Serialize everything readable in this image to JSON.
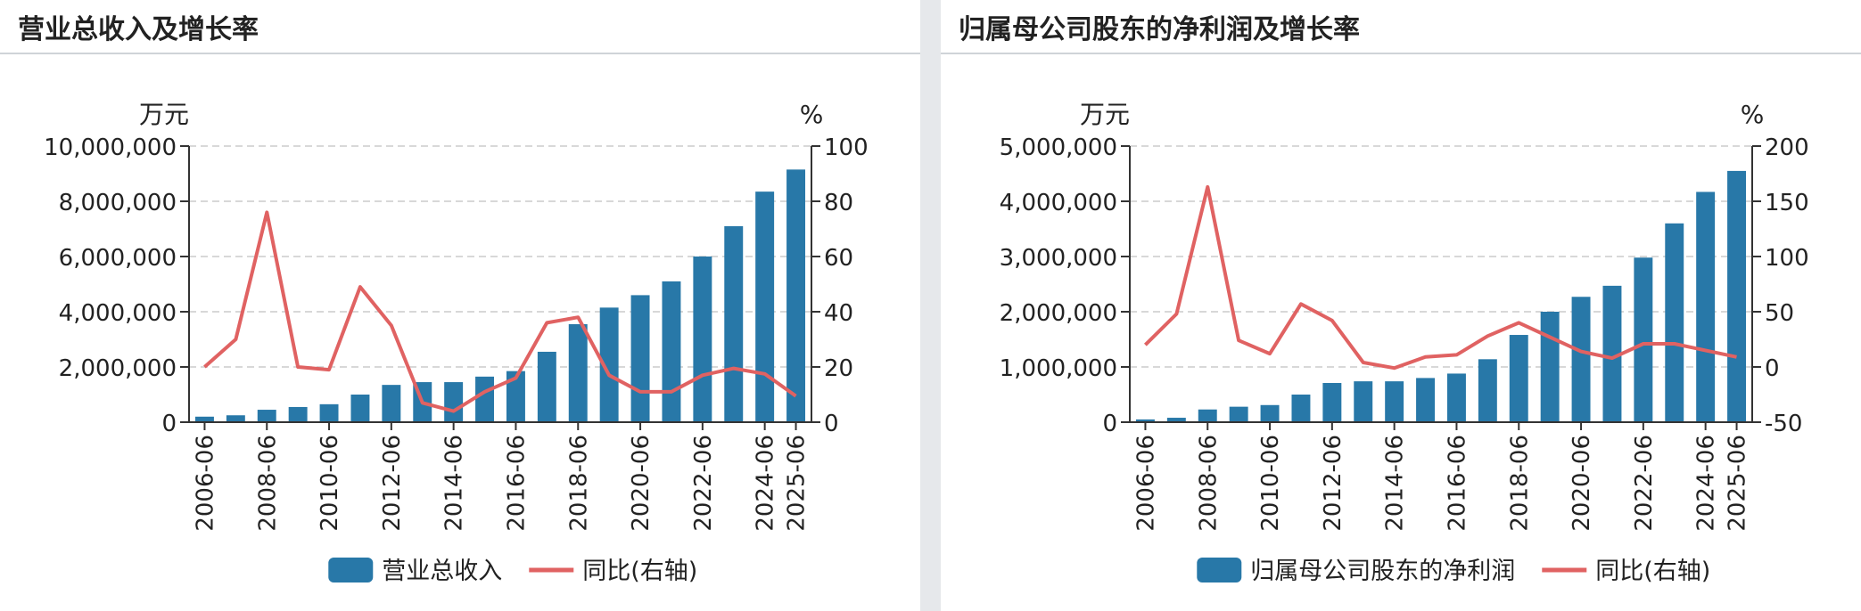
{
  "colors": {
    "bar": "#2878a8",
    "line": "#e06262",
    "grid": "#cccccc"
  },
  "chart_data": [
    {
      "type": "bar",
      "title": "营业总收入及增长率",
      "left_unit": "万元",
      "right_unit": "%",
      "categories": [
        "2006-06",
        "2007-06",
        "2008-06",
        "2009-06",
        "2010-06",
        "2011-06",
        "2012-06",
        "2013-06",
        "2014-06",
        "2015-06",
        "2016-06",
        "2017-06",
        "2018-06",
        "2019-06",
        "2020-06",
        "2021-06",
        "2022-06",
        "2023-06",
        "2024-06",
        "2025-06"
      ],
      "x_tick_labels": [
        "2006-06",
        "2008-06",
        "2010-06",
        "2012-06",
        "2014-06",
        "2016-06",
        "2018-06",
        "2020-06",
        "2022-06",
        "2024-06",
        "2025-06"
      ],
      "ylim": [
        0,
        10000000
      ],
      "y_ticks": [
        0,
        2000000,
        4000000,
        6000000,
        8000000,
        10000000
      ],
      "y_tick_labels": [
        "0",
        "2,000,000",
        "4,000,000",
        "6,000,000",
        "8,000,000",
        "10,000,000"
      ],
      "y2lim": [
        0,
        100
      ],
      "y2_ticks": [
        0,
        20,
        40,
        60,
        80,
        100
      ],
      "y2_tick_labels": [
        "0",
        "20",
        "40",
        "60",
        "80",
        "100"
      ],
      "grid": true,
      "legend_position": "bottom",
      "series": [
        {
          "name": "营业总收入",
          "type": "bar",
          "axis": "left",
          "values": [
            200000,
            250000,
            450000,
            550000,
            650000,
            1000000,
            1350000,
            1450000,
            1450000,
            1650000,
            1850000,
            2550000,
            3550000,
            4150000,
            4600000,
            5100000,
            6000000,
            7100000,
            8350000,
            9150000
          ]
        },
        {
          "name": "同比(右轴)",
          "type": "line",
          "axis": "right",
          "values": [
            20,
            30,
            76,
            20,
            19,
            49,
            35,
            7,
            4,
            11,
            16,
            36,
            38,
            17,
            11,
            11,
            17,
            19.5,
            17.5,
            9.5
          ]
        }
      ]
    },
    {
      "type": "bar",
      "title": "归属母公司股东的净利润及增长率",
      "left_unit": "万元",
      "right_unit": "%",
      "categories": [
        "2006-06",
        "2007-06",
        "2008-06",
        "2009-06",
        "2010-06",
        "2011-06",
        "2012-06",
        "2013-06",
        "2014-06",
        "2015-06",
        "2016-06",
        "2017-06",
        "2018-06",
        "2019-06",
        "2020-06",
        "2021-06",
        "2022-06",
        "2023-06",
        "2024-06",
        "2025-06"
      ],
      "x_tick_labels": [
        "2006-06",
        "2008-06",
        "2010-06",
        "2012-06",
        "2014-06",
        "2016-06",
        "2018-06",
        "2020-06",
        "2022-06",
        "2024-06",
        "2025-06"
      ],
      "ylim": [
        0,
        5000000
      ],
      "y_ticks": [
        0,
        1000000,
        2000000,
        3000000,
        4000000,
        5000000
      ],
      "y_tick_labels": [
        "0",
        "1,000,000",
        "2,000,000",
        "3,000,000",
        "4,000,000",
        "5,000,000"
      ],
      "y2lim": [
        -50,
        200
      ],
      "y2_ticks": [
        -50,
        0,
        50,
        100,
        150,
        200
      ],
      "y2_tick_labels": [
        "-50",
        "0",
        "50",
        "100",
        "150",
        "200"
      ],
      "grid": true,
      "legend_position": "bottom",
      "series": [
        {
          "name": "归属母公司股东的净利润",
          "type": "bar",
          "axis": "left",
          "values": [
            50000,
            80000,
            230000,
            280000,
            310000,
            500000,
            710000,
            740000,
            740000,
            800000,
            880000,
            1140000,
            1580000,
            2000000,
            2270000,
            2470000,
            2980000,
            3600000,
            4170000,
            4550000
          ]
        },
        {
          "name": "同比(右轴)",
          "type": "line",
          "axis": "right",
          "values": [
            20,
            48,
            163,
            24,
            12,
            57,
            42,
            4,
            -1,
            9,
            11,
            28,
            40,
            27,
            14,
            8,
            21,
            21,
            15,
            9
          ]
        }
      ]
    }
  ]
}
